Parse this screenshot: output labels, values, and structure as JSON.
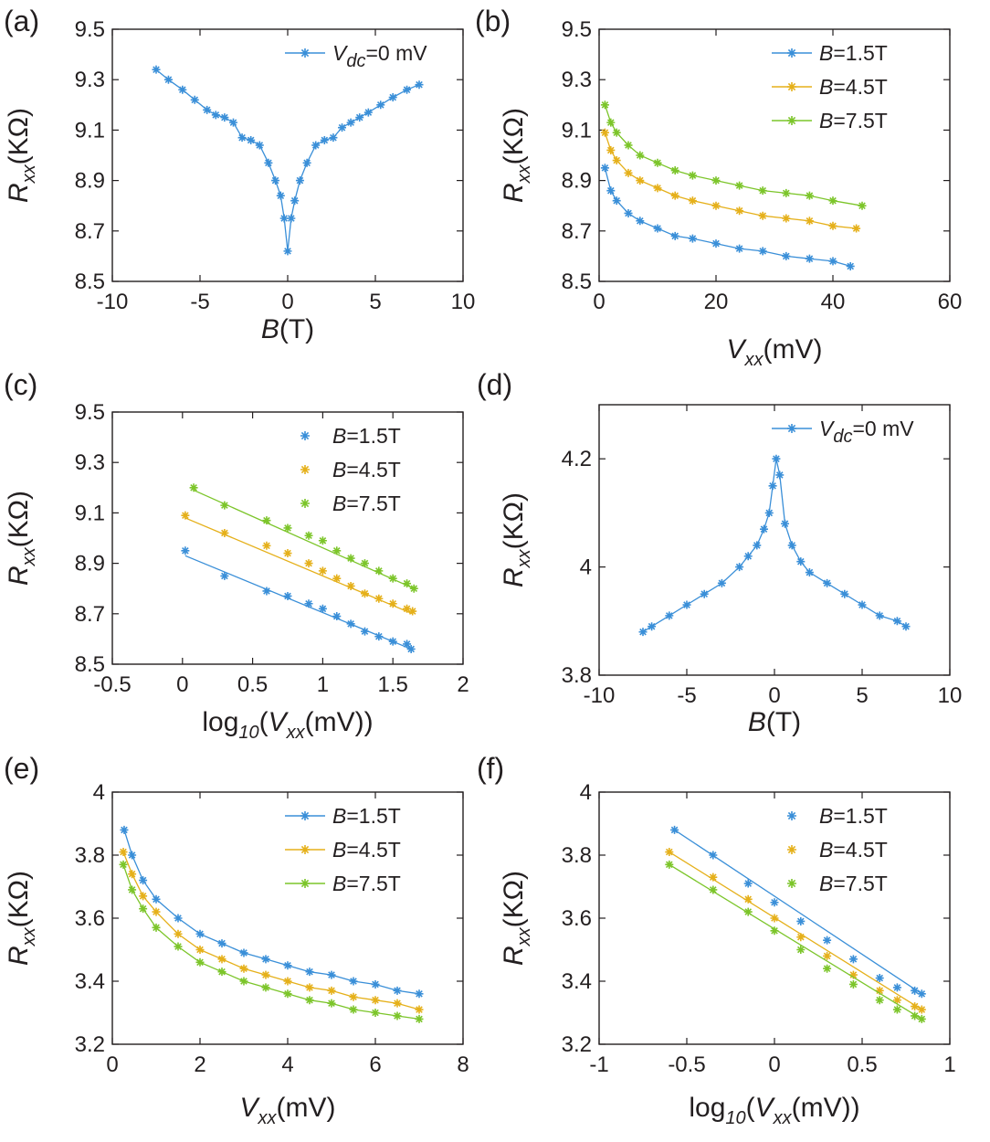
{
  "colors": {
    "blue": "#3a8fd8",
    "yellow": "#e5b01a",
    "green": "#7cc52a",
    "axis": "#231f20"
  },
  "chart_data": [
    {
      "panel": "(a)",
      "type": "line",
      "xlabel": {
        "main": "B",
        "unit": "(T)"
      },
      "ylabel": {
        "main": "R",
        "sub": "xx",
        "unit": "(KΩ)"
      },
      "xlim": [
        -10,
        10
      ],
      "ylim": [
        8.5,
        9.5
      ],
      "xticks": [
        "-10",
        "-5",
        "0",
        "5",
        "10"
      ],
      "yticks": [
        "8.5",
        "8.7",
        "8.9",
        "9.1",
        "9.3",
        "9.5"
      ],
      "legend_position": "top-right",
      "legend_markers": "line",
      "series": [
        {
          "name": "V",
          "name_sub": "dc",
          "name_rest": "=0 mV",
          "color": "blue",
          "x": [
            -7.5,
            -6.8,
            -6.0,
            -5.3,
            -4.6,
            -4.1,
            -3.6,
            -3.1,
            -2.6,
            -2.1,
            -1.6,
            -1.1,
            -0.7,
            -0.4,
            -0.2,
            0.0,
            0.2,
            0.4,
            0.7,
            1.1,
            1.6,
            2.1,
            2.6,
            3.1,
            3.6,
            4.1,
            4.6,
            5.3,
            6.0,
            6.8,
            7.5
          ],
          "y": [
            9.34,
            9.3,
            9.26,
            9.22,
            9.18,
            9.16,
            9.15,
            9.13,
            9.07,
            9.06,
            9.04,
            8.97,
            8.9,
            8.84,
            8.75,
            8.62,
            8.75,
            8.82,
            8.9,
            8.97,
            9.04,
            9.06,
            9.07,
            9.11,
            9.13,
            9.15,
            9.17,
            9.2,
            9.23,
            9.26,
            9.28
          ]
        }
      ]
    },
    {
      "panel": "(b)",
      "type": "line",
      "xlabel": {
        "main": "V",
        "sub": "xx",
        "unit": "(mV)"
      },
      "ylabel": {
        "main": "R",
        "sub": "xx",
        "unit": "(KΩ)"
      },
      "xlim": [
        0,
        60
      ],
      "ylim": [
        8.5,
        9.5
      ],
      "xticks": [
        "0",
        "20",
        "40",
        "60"
      ],
      "yticks": [
        "8.5",
        "8.7",
        "8.9",
        "9.1",
        "9.3",
        "9.5"
      ],
      "legend_position": "top-right",
      "legend_markers": "line",
      "series": [
        {
          "name": "B",
          "name_rest": "=1.5T",
          "color": "blue",
          "x": [
            1,
            2,
            3,
            5,
            7,
            10,
            13,
            16,
            20,
            24,
            28,
            32,
            36,
            40,
            43
          ],
          "y": [
            8.95,
            8.86,
            8.82,
            8.77,
            8.74,
            8.71,
            8.68,
            8.67,
            8.65,
            8.63,
            8.62,
            8.6,
            8.59,
            8.58,
            8.56
          ]
        },
        {
          "name": "B",
          "name_rest": "=4.5T",
          "color": "yellow",
          "x": [
            1,
            2,
            3,
            5,
            7,
            10,
            13,
            16,
            20,
            24,
            28,
            32,
            36,
            40,
            44
          ],
          "y": [
            9.09,
            9.02,
            8.98,
            8.93,
            8.9,
            8.87,
            8.84,
            8.82,
            8.8,
            8.78,
            8.76,
            8.75,
            8.74,
            8.72,
            8.71
          ]
        },
        {
          "name": "B",
          "name_rest": "=7.5T",
          "color": "green",
          "x": [
            1,
            2,
            3,
            5,
            7,
            10,
            13,
            16,
            20,
            24,
            28,
            32,
            36,
            40,
            45
          ],
          "y": [
            9.2,
            9.13,
            9.09,
            9.04,
            9.0,
            8.97,
            8.94,
            8.92,
            8.9,
            8.88,
            8.86,
            8.85,
            8.84,
            8.82,
            8.8
          ]
        }
      ]
    },
    {
      "panel": "(c)",
      "type": "scatter",
      "xlabel": {
        "pre": "log",
        "pre_sub": "10",
        "main": "(V",
        "sub": "xx",
        "unit": "(mV))"
      },
      "ylabel": {
        "main": "R",
        "sub": "xx",
        "unit": "(KΩ)"
      },
      "xlim": [
        -0.5,
        2
      ],
      "ylim": [
        8.5,
        9.5
      ],
      "xticks": [
        "-0.5",
        "0",
        "0.5",
        "1",
        "1.5",
        "2"
      ],
      "yticks": [
        "8.5",
        "8.7",
        "8.9",
        "9.1",
        "9.3",
        "9.5"
      ],
      "legend_position": "top-right",
      "legend_markers": "point",
      "series": [
        {
          "name": "B",
          "name_rest": "=1.5T",
          "color": "blue",
          "x": [
            0.02,
            0.3,
            0.6,
            0.75,
            0.9,
            1.0,
            1.1,
            1.2,
            1.3,
            1.4,
            1.5,
            1.6,
            1.63
          ],
          "y": [
            8.95,
            8.85,
            8.79,
            8.77,
            8.74,
            8.72,
            8.69,
            8.66,
            8.63,
            8.61,
            8.59,
            8.58,
            8.56
          ],
          "fit": [
            [
              0.02,
              8.93
            ],
            [
              1.63,
              8.56
            ]
          ]
        },
        {
          "name": "B",
          "name_rest": "=4.5T",
          "color": "yellow",
          "x": [
            0.02,
            0.3,
            0.6,
            0.75,
            0.9,
            1.0,
            1.1,
            1.2,
            1.3,
            1.4,
            1.5,
            1.6,
            1.64
          ],
          "y": [
            9.09,
            9.02,
            8.97,
            8.94,
            8.9,
            8.87,
            8.84,
            8.81,
            8.78,
            8.76,
            8.74,
            8.72,
            8.71
          ],
          "fit": [
            [
              0.02,
              9.08
            ],
            [
              1.64,
              8.7
            ]
          ]
        },
        {
          "name": "B",
          "name_rest": "=7.5T",
          "color": "green",
          "x": [
            0.08,
            0.3,
            0.6,
            0.75,
            0.9,
            1.0,
            1.1,
            1.2,
            1.3,
            1.4,
            1.5,
            1.6,
            1.65
          ],
          "y": [
            9.2,
            9.13,
            9.07,
            9.04,
            9.01,
            8.99,
            8.95,
            8.92,
            8.9,
            8.87,
            8.84,
            8.82,
            8.8
          ],
          "fit": [
            [
              0.08,
              9.19
            ],
            [
              1.65,
              8.8
            ]
          ]
        }
      ]
    },
    {
      "panel": "(d)",
      "type": "line",
      "xlabel": {
        "main": "B",
        "unit": "(T)"
      },
      "ylabel": {
        "main": "R",
        "sub": "xx",
        "unit": "(KΩ)"
      },
      "xlim": [
        -10,
        10
      ],
      "ylim": [
        3.8,
        4.3
      ],
      "xticks": [
        "-10",
        "-5",
        "0",
        "5",
        "10"
      ],
      "yticks": [
        "3.8",
        "4",
        "4.2"
      ],
      "ytick_values": [
        3.8,
        4.0,
        4.2
      ],
      "legend_position": "top-right",
      "legend_markers": "line",
      "series": [
        {
          "name": "V",
          "name_sub": "dc",
          "name_rest": "=0 mV",
          "color": "blue",
          "x": [
            -7.5,
            -7.0,
            -6.0,
            -5.0,
            -4.0,
            -3.0,
            -2.0,
            -1.5,
            -1.0,
            -0.6,
            -0.3,
            -0.1,
            0.1,
            0.3,
            0.6,
            1.0,
            1.5,
            2.0,
            3.0,
            4.0,
            5.0,
            6.0,
            7.0,
            7.5
          ],
          "y": [
            3.88,
            3.89,
            3.91,
            3.93,
            3.95,
            3.97,
            4.0,
            4.02,
            4.04,
            4.07,
            4.1,
            4.15,
            4.2,
            4.17,
            4.08,
            4.04,
            4.01,
            3.99,
            3.97,
            3.95,
            3.93,
            3.91,
            3.9,
            3.89
          ]
        }
      ]
    },
    {
      "panel": "(e)",
      "type": "line",
      "xlabel": {
        "main": "V",
        "sub": "xx",
        "unit": "(mV)"
      },
      "ylabel": {
        "main": "R",
        "sub": "xx",
        "unit": "(KΩ)"
      },
      "xlim": [
        0,
        8
      ],
      "ylim": [
        3.2,
        4.0
      ],
      "xticks": [
        "0",
        "2",
        "4",
        "6",
        "8"
      ],
      "yticks": [
        "3.2",
        "3.4",
        "3.6",
        "3.8",
        "4"
      ],
      "ytick_values": [
        3.2,
        3.4,
        3.6,
        3.8,
        4.0
      ],
      "legend_position": "top-right",
      "legend_markers": "line",
      "series": [
        {
          "name": "B",
          "name_rest": "=1.5T",
          "color": "blue",
          "x": [
            0.27,
            0.45,
            0.7,
            1.0,
            1.5,
            2.0,
            2.5,
            3.0,
            3.5,
            4.0,
            4.5,
            5.0,
            5.5,
            6.0,
            6.5,
            7.0
          ],
          "y": [
            3.88,
            3.8,
            3.72,
            3.66,
            3.6,
            3.55,
            3.52,
            3.49,
            3.47,
            3.45,
            3.43,
            3.42,
            3.4,
            3.39,
            3.37,
            3.36
          ]
        },
        {
          "name": "B",
          "name_rest": "=4.5T",
          "color": "yellow",
          "x": [
            0.25,
            0.45,
            0.7,
            1.0,
            1.5,
            2.0,
            2.5,
            3.0,
            3.5,
            4.0,
            4.5,
            5.0,
            5.5,
            6.0,
            6.5,
            7.0
          ],
          "y": [
            3.81,
            3.74,
            3.67,
            3.62,
            3.55,
            3.5,
            3.47,
            3.44,
            3.42,
            3.4,
            3.38,
            3.37,
            3.35,
            3.34,
            3.33,
            3.31
          ]
        },
        {
          "name": "B",
          "name_rest": "=7.5T",
          "color": "green",
          "x": [
            0.25,
            0.45,
            0.7,
            1.0,
            1.5,
            2.0,
            2.5,
            3.0,
            3.5,
            4.0,
            4.5,
            5.0,
            5.5,
            6.0,
            6.5,
            7.0
          ],
          "y": [
            3.77,
            3.69,
            3.63,
            3.57,
            3.51,
            3.46,
            3.43,
            3.4,
            3.38,
            3.36,
            3.34,
            3.33,
            3.31,
            3.3,
            3.29,
            3.28
          ]
        }
      ]
    },
    {
      "panel": "(f)",
      "type": "scatter",
      "xlabel": {
        "pre": "log",
        "pre_sub": "10",
        "main": "(V",
        "sub": "xx",
        "unit": "(mV))"
      },
      "ylabel": {
        "main": "R",
        "sub": "xx",
        "unit": "(KΩ)"
      },
      "xlim": [
        -1,
        1
      ],
      "ylim": [
        3.2,
        4.0
      ],
      "xticks": [
        "-1",
        "-0.5",
        "0",
        "0.5",
        "1"
      ],
      "yticks": [
        "3.2",
        "3.4",
        "3.6",
        "3.8",
        "4"
      ],
      "ytick_values": [
        3.2,
        3.4,
        3.6,
        3.8,
        4.0
      ],
      "legend_position": "top-right",
      "legend_markers": "point",
      "series": [
        {
          "name": "B",
          "name_rest": "=1.5T",
          "color": "blue",
          "x": [
            -0.57,
            -0.35,
            -0.15,
            0.0,
            0.15,
            0.3,
            0.45,
            0.6,
            0.7,
            0.8,
            0.84
          ],
          "y": [
            3.88,
            3.8,
            3.71,
            3.65,
            3.59,
            3.53,
            3.47,
            3.41,
            3.38,
            3.37,
            3.36
          ],
          "fit": [
            [
              -0.57,
              3.88
            ],
            [
              0.84,
              3.36
            ]
          ]
        },
        {
          "name": "B",
          "name_rest": "=4.5T",
          "color": "yellow",
          "x": [
            -0.6,
            -0.35,
            -0.15,
            0.0,
            0.15,
            0.3,
            0.45,
            0.6,
            0.7,
            0.8,
            0.84
          ],
          "y": [
            3.81,
            3.73,
            3.66,
            3.6,
            3.54,
            3.48,
            3.42,
            3.37,
            3.34,
            3.32,
            3.31
          ],
          "fit": [
            [
              -0.6,
              3.81
            ],
            [
              0.84,
              3.31
            ]
          ]
        },
        {
          "name": "B",
          "name_rest": "=7.5T",
          "color": "green",
          "x": [
            -0.6,
            -0.35,
            -0.15,
            0.0,
            0.15,
            0.3,
            0.45,
            0.6,
            0.7,
            0.8,
            0.84
          ],
          "y": [
            3.77,
            3.69,
            3.62,
            3.56,
            3.5,
            3.44,
            3.39,
            3.34,
            3.31,
            3.29,
            3.28
          ],
          "fit": [
            [
              -0.6,
              3.77
            ],
            [
              0.84,
              3.28
            ]
          ]
        }
      ]
    }
  ]
}
